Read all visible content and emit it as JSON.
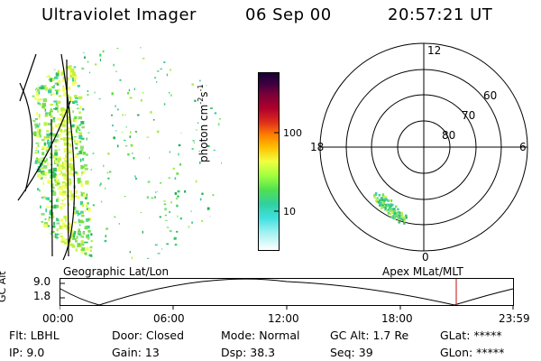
{
  "header": {
    "instrument": "Ultraviolet Imager",
    "date": "06 Sep 00",
    "time": "20:57:21 UT"
  },
  "left_panel": {
    "label": "Geographic Lat/Lon"
  },
  "right_panel": {
    "label": "Apex MLat/MLT",
    "mlt_labels": [
      "12",
      "18",
      "6",
      "0"
    ],
    "lat_labels": [
      "60",
      "70",
      "80"
    ]
  },
  "colorbar": {
    "unit_label": "photon cm",
    "unit_sup1": "-2",
    "unit_mid": "s",
    "unit_sup2": "-1",
    "ticks": [
      "100",
      "10"
    ],
    "scale": "log"
  },
  "orbit": {
    "axis_label": "GC Alt",
    "y_ticks": [
      "9.0",
      "1.8"
    ],
    "x_ticks": [
      "00:00",
      "06:00",
      "12:00",
      "18:00",
      "23:59"
    ],
    "marker_color": "#cc3333"
  },
  "status": {
    "flt": "Flt: LBHL",
    "ip": "IP:  9.0",
    "door": "Door: Closed",
    "gain": "Gain: 13",
    "mode": "Mode: Normal",
    "dsp": "Dsp:     38.3",
    "gcalt": "GC Alt: 1.7 Re",
    "seq": "Seq: 39",
    "glat": "GLat: *****",
    "glon": "GLon: *****"
  }
}
